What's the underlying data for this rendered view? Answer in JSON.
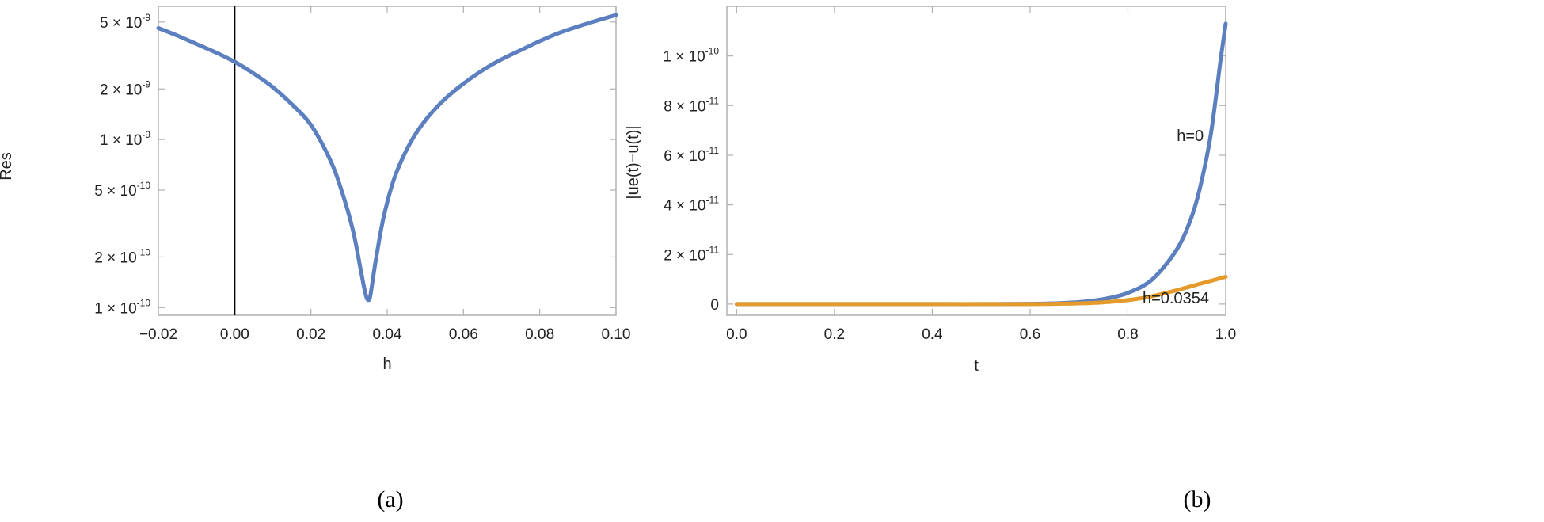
{
  "chart_data": [
    {
      "type": "line",
      "panel": "(a)",
      "xlabel": "h",
      "ylabel": "Res",
      "yscale": "log",
      "xlim": [
        -0.02,
        0.1
      ],
      "ylim": [
        9e-11,
        6.2e-09
      ],
      "x_ticks": [
        {
          "value": -0.02,
          "label": "−0.02"
        },
        {
          "value": 0.0,
          "label": "0.00"
        },
        {
          "value": 0.02,
          "label": "0.02"
        },
        {
          "value": 0.04,
          "label": "0.04"
        },
        {
          "value": 0.06,
          "label": "0.06"
        },
        {
          "value": 0.08,
          "label": "0.08"
        },
        {
          "value": 0.1,
          "label": "0.10"
        }
      ],
      "y_ticks": [
        {
          "value": 1e-10,
          "mant": "1.",
          "exp": "-10"
        },
        {
          "value": 2e-10,
          "mant": "2.",
          "exp": "-10"
        },
        {
          "value": 5e-10,
          "mant": "5.",
          "exp": "-10"
        },
        {
          "value": 1e-09,
          "mant": "1.",
          "exp": "-9"
        },
        {
          "value": 2e-09,
          "mant": "2.",
          "exp": "-9"
        },
        {
          "value": 5e-09,
          "mant": "5.",
          "exp": "-9"
        }
      ],
      "vertical_line_x": 0.0,
      "series": [
        {
          "name": "Res",
          "color": "#5b7fbf",
          "x": [
            -0.02,
            -0.015,
            -0.01,
            -0.005,
            0.0,
            0.005,
            0.01,
            0.015,
            0.02,
            0.025,
            0.028,
            0.031,
            0.033,
            0.034,
            0.0347,
            0.0354,
            0.036,
            0.037,
            0.039,
            0.042,
            0.046,
            0.05,
            0.055,
            0.06,
            0.065,
            0.07,
            0.075,
            0.08,
            0.085,
            0.09,
            0.095,
            0.1
          ],
          "y": [
            4.6e-09,
            4.15e-09,
            3.7e-09,
            3.3e-09,
            2.9e-09,
            2.47e-09,
            2.05e-09,
            1.62e-09,
            1.22e-09,
            7.6e-10,
            5e-10,
            2.9e-10,
            1.7e-10,
            1.3e-10,
            1.13e-10,
            1.13e-10,
            1.35e-10,
            1.9e-10,
            3.4e-10,
            6e-10,
            9.5e-10,
            1.3e-09,
            1.73e-09,
            2.15e-09,
            2.58e-09,
            3e-09,
            3.4e-09,
            3.85e-09,
            4.3e-09,
            4.7e-09,
            5.1e-09,
            5.5e-09
          ]
        }
      ]
    },
    {
      "type": "line",
      "panel": "(b)",
      "xlabel": "t",
      "ylabel": "|ue(t)−u(t)|",
      "xlim": [
        -0.02,
        1.0
      ],
      "ylim": [
        -4.5e-12,
        1.2e-10
      ],
      "x_ticks": [
        {
          "value": 0.0,
          "label": "0.0"
        },
        {
          "value": 0.2,
          "label": "0.2"
        },
        {
          "value": 0.4,
          "label": "0.4"
        },
        {
          "value": 0.6,
          "label": "0.6"
        },
        {
          "value": 0.8,
          "label": "0.8"
        },
        {
          "value": 1.0,
          "label": "1.0"
        }
      ],
      "y_ticks": [
        {
          "value": 0,
          "mant": "0",
          "exp": ""
        },
        {
          "value": 2e-11,
          "mant": "2.",
          "exp": "-11"
        },
        {
          "value": 4e-11,
          "mant": "4.",
          "exp": "-11"
        },
        {
          "value": 6e-11,
          "mant": "6.",
          "exp": "-11"
        },
        {
          "value": 8e-11,
          "mant": "8.",
          "exp": "-11"
        },
        {
          "value": 1e-10,
          "mant": "1.",
          "exp": "-10"
        }
      ],
      "annotations": [
        {
          "text": "h=0",
          "x": 0.9,
          "y": 6.8e-11
        },
        {
          "text": "h=0.0354",
          "x": 0.83,
          "y": 2.6e-12
        }
      ],
      "series": [
        {
          "name": "h=0",
          "color": "#5b7fbf",
          "x": [
            0.0,
            0.1,
            0.2,
            0.3,
            0.4,
            0.5,
            0.6,
            0.65,
            0.7,
            0.75,
            0.8,
            0.85,
            0.9,
            0.93,
            0.95,
            0.97,
            0.99,
            1.0
          ],
          "y": [
            0,
            0,
            0,
            0,
            0,
            0,
            1e-13,
            3e-13,
            8e-13,
            2e-12,
            4.5e-12,
            1e-11,
            2.2e-11,
            3.5e-11,
            4.9e-11,
            6.9e-11,
            9.9e-11,
            1.13e-10
          ]
        },
        {
          "name": "h=0.0354",
          "color": "#e59b2c",
          "x": [
            0.0,
            0.1,
            0.2,
            0.3,
            0.4,
            0.5,
            0.6,
            0.65,
            0.7,
            0.75,
            0.8,
            0.85,
            0.9,
            0.95,
            1.0
          ],
          "y": [
            0,
            0,
            0,
            0,
            0,
            0,
            0,
            1e-13,
            3e-13,
            7e-13,
            1.6e-12,
            3.2e-12,
            5.6e-12,
            8.3e-12,
            1.1e-11
          ]
        }
      ]
    }
  ],
  "captions": {
    "a": "(a)",
    "b": "(b)"
  },
  "times_sign": "×10"
}
